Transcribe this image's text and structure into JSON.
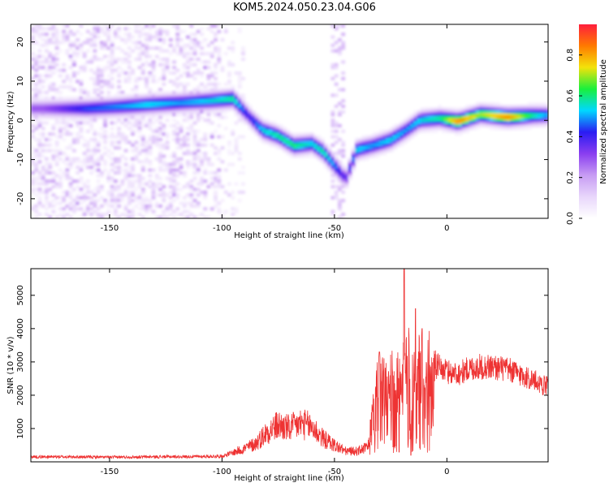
{
  "title": "KOM5.2024.050.23.04.G06",
  "colors": {
    "snr_line": "#ee3333",
    "colormap": [
      "#ffffff",
      "#e8d6fb",
      "#c79cf3",
      "#8a3ef0",
      "#2a1cf2",
      "#00d8ff",
      "#19f03c",
      "#f3e20a",
      "#ff7a00",
      "#ff1e3c"
    ]
  },
  "chart_data": [
    {
      "type": "heatmap",
      "xlabel": "Height of straight line (km)",
      "ylabel": "Frequency (Hz)",
      "xlim": [
        -185,
        45
      ],
      "ylim": [
        -25,
        24.5
      ],
      "xticks": [
        -150,
        -100,
        -50,
        0
      ],
      "yticks": [
        -20,
        -10,
        0,
        10,
        20
      ],
      "xtick_labels": [
        "-150",
        "-100",
        "-50",
        "0"
      ],
      "ytick_labels": [
        "-20",
        "-10",
        "0",
        "10",
        "20"
      ],
      "colorbar": {
        "label": "Normalized spectral amplitude",
        "range": [
          0.0,
          0.95
        ],
        "ticks": [
          0.0,
          0.2,
          0.4,
          0.6,
          0.8
        ],
        "tick_labels": [
          "0.0",
          "0.2",
          "0.4",
          "0.6",
          "0.8"
        ]
      },
      "ridge": [
        {
          "x": -180,
          "freq": 3,
          "amp": 0.3
        },
        {
          "x": -160,
          "freq": 3,
          "amp": 0.45
        },
        {
          "x": -145,
          "freq": 3.5,
          "amp": 0.5
        },
        {
          "x": -133,
          "freq": 4,
          "amp": 0.55
        },
        {
          "x": -118,
          "freq": 4.5,
          "amp": 0.5
        },
        {
          "x": -105,
          "freq": 5,
          "amp": 0.55
        },
        {
          "x": -95,
          "freq": 5.5,
          "amp": 0.6
        },
        {
          "x": -88,
          "freq": 1,
          "amp": 0.4
        },
        {
          "x": -82,
          "freq": -2.5,
          "amp": 0.55
        },
        {
          "x": -75,
          "freq": -4,
          "amp": 0.6
        },
        {
          "x": -68,
          "freq": -6.5,
          "amp": 0.62
        },
        {
          "x": -60,
          "freq": -6,
          "amp": 0.55
        },
        {
          "x": -55,
          "freq": -8,
          "amp": 0.6
        },
        {
          "x": -50,
          "freq": -11.5,
          "amp": 0.5
        },
        {
          "x": -45,
          "freq": -15,
          "amp": 0.35
        },
        {
          "x": -40,
          "freq": -7.5,
          "amp": 0.55
        },
        {
          "x": -33,
          "freq": -6.5,
          "amp": 0.5
        },
        {
          "x": -25,
          "freq": -5,
          "amp": 0.55
        },
        {
          "x": -18,
          "freq": -2.5,
          "amp": 0.5
        },
        {
          "x": -12,
          "freq": 0,
          "amp": 0.55
        },
        {
          "x": -3,
          "freq": 0.5,
          "amp": 0.6
        },
        {
          "x": 5,
          "freq": -0.3,
          "amp": 0.85
        },
        {
          "x": 15,
          "freq": 1.5,
          "amp": 0.7
        },
        {
          "x": 27,
          "freq": 0.8,
          "amp": 0.85
        },
        {
          "x": 38,
          "freq": 1.2,
          "amp": 0.6
        },
        {
          "x": 45,
          "freq": 1.3,
          "amp": 0.5
        }
      ]
    },
    {
      "type": "line",
      "xlabel": "Height of straight line (km)",
      "ylabel": "SNR (10 * v/v)",
      "xlim": [
        -185,
        45
      ],
      "ylim": [
        0,
        5800
      ],
      "xticks": [
        -150,
        -100,
        -50,
        0
      ],
      "yticks": [
        1000,
        2000,
        3000,
        4000,
        5000
      ],
      "xtick_labels": [
        "-150",
        "-100",
        "-50",
        "0"
      ],
      "ytick_labels": [
        "1000",
        "2000",
        "3000",
        "4000",
        "5000"
      ],
      "series": [
        {
          "x": [
            -185,
            -170,
            -150,
            -130,
            -110,
            -100,
            -95,
            -90,
            -85,
            -80,
            -75,
            -70,
            -65,
            -60,
            -55,
            -50,
            -45,
            -40,
            -35,
            -32,
            -30,
            -27,
            -25,
            -22,
            -20,
            -17,
            -15,
            -12,
            -10,
            -5,
            0,
            5,
            10,
            15,
            20,
            25,
            30,
            35,
            40,
            45
          ],
          "values": [
            150,
            150,
            140,
            150,
            160,
            170,
            280,
            400,
            550,
            900,
            1100,
            1000,
            1150,
            1050,
            700,
            500,
            320,
            320,
            450,
            1900,
            2300,
            2200,
            2300,
            2350,
            2400,
            2800,
            2300,
            2700,
            2600,
            2900,
            2700,
            2650,
            2800,
            2850,
            2850,
            2800,
            2700,
            2550,
            2400,
            2250
          ]
        }
      ],
      "spikes": [
        {
          "x": -19,
          "y": 5800
        },
        {
          "x": -14,
          "y": 4600
        },
        {
          "x": -11,
          "y": 4000
        },
        {
          "x": -30,
          "y": 3300
        },
        {
          "x": -16,
          "y": 200
        }
      ]
    }
  ]
}
